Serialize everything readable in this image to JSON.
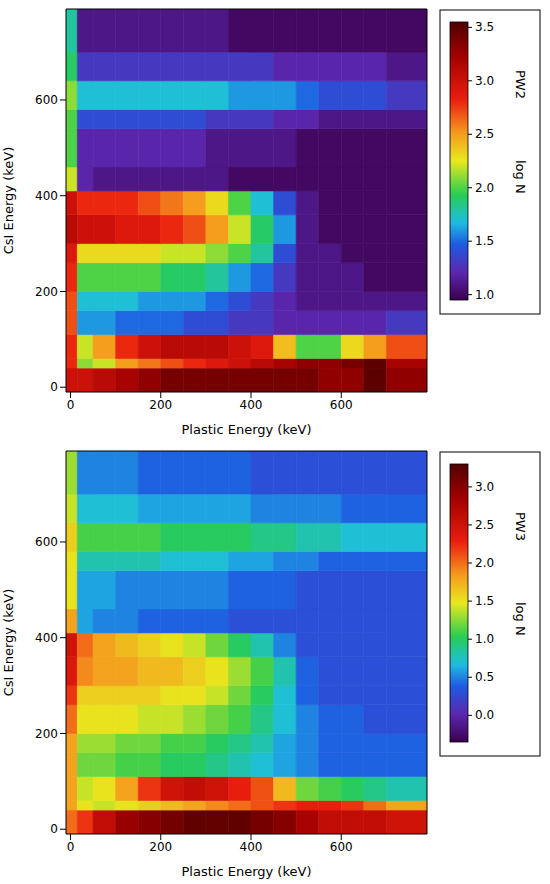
{
  "chart_data": [
    {
      "type": "heatmap",
      "xlabel": "Plastic Energy (keV)",
      "ylabel": "CsI Energy (keV)",
      "xlim": [
        -10,
        790
      ],
      "ylim": [
        -10,
        790
      ],
      "xticks": [
        0,
        200,
        400,
        600
      ],
      "yticks": [
        0,
        200,
        400,
        600
      ],
      "x_edges": [
        -10,
        15,
        50,
        100,
        150,
        200,
        250,
        300,
        350,
        400,
        450,
        500,
        550,
        600,
        650,
        700,
        790
      ],
      "y_edges": [
        -10,
        40,
        60,
        110,
        160,
        200,
        260,
        300,
        360,
        410,
        460,
        540,
        580,
        640,
        700,
        790
      ],
      "cells": [
        [
          3.0,
          3.0,
          3.1,
          3.2,
          3.3,
          3.4,
          3.4,
          3.4,
          3.4,
          3.4,
          3.4,
          3.4,
          3.3,
          3.3,
          3.5,
          3.3
        ],
        [
          2.8,
          2.1,
          2.2,
          2.5,
          2.6,
          2.7,
          2.8,
          2.9,
          3.0,
          3.1,
          3.2,
          3.3,
          3.3,
          3.4,
          3.5,
          3.2
        ],
        [
          2.8,
          2.2,
          2.5,
          2.8,
          3.0,
          3.1,
          3.1,
          3.1,
          3.0,
          2.9,
          2.4,
          2.0,
          2.0,
          2.3,
          2.5,
          2.7
        ],
        [
          2.7,
          1.6,
          1.6,
          1.5,
          1.5,
          1.5,
          1.4,
          1.4,
          1.3,
          1.3,
          1.2,
          1.2,
          1.2,
          1.2,
          1.2,
          1.3
        ],
        [
          2.7,
          1.7,
          1.7,
          1.7,
          1.6,
          1.6,
          1.6,
          1.5,
          1.4,
          1.3,
          1.2,
          1.1,
          1.1,
          1.1,
          1.1,
          1.1
        ],
        [
          2.8,
          2.0,
          2.0,
          2.0,
          2.0,
          1.9,
          1.9,
          1.8,
          1.6,
          1.5,
          1.3,
          1.1,
          1.1,
          1.1,
          1.0,
          1.0
        ],
        [
          2.9,
          2.3,
          2.3,
          2.3,
          2.3,
          2.2,
          2.2,
          2.1,
          2.0,
          1.8,
          1.4,
          1.1,
          1.1,
          1.0,
          1.0,
          1.0
        ],
        [
          3.1,
          3.0,
          3.0,
          2.9,
          2.9,
          2.8,
          2.7,
          2.5,
          2.2,
          1.9,
          1.6,
          1.1,
          1.0,
          1.0,
          1.0,
          1.0
        ],
        [
          3.0,
          2.8,
          2.8,
          2.8,
          2.7,
          2.6,
          2.5,
          2.3,
          2.0,
          1.7,
          1.4,
          1.1,
          1.0,
          1.0,
          1.0,
          1.0
        ],
        [
          2.2,
          1.2,
          1.1,
          1.1,
          1.1,
          1.1,
          1.1,
          1.1,
          1.0,
          1.0,
          1.0,
          1.0,
          1.0,
          1.0,
          1.0,
          1.0
        ],
        [
          2.0,
          1.2,
          1.2,
          1.2,
          1.2,
          1.2,
          1.2,
          1.1,
          1.1,
          1.1,
          1.1,
          1.0,
          1.0,
          1.0,
          1.0,
          1.0
        ],
        [
          2.0,
          1.4,
          1.4,
          1.4,
          1.4,
          1.4,
          1.4,
          1.3,
          1.3,
          1.3,
          1.2,
          1.2,
          1.1,
          1.1,
          1.1,
          1.1
        ],
        [
          2.1,
          1.7,
          1.7,
          1.7,
          1.7,
          1.7,
          1.7,
          1.7,
          1.6,
          1.6,
          1.6,
          1.5,
          1.4,
          1.4,
          1.4,
          1.3
        ],
        [
          1.9,
          1.3,
          1.3,
          1.3,
          1.3,
          1.3,
          1.3,
          1.3,
          1.3,
          1.3,
          1.2,
          1.2,
          1.2,
          1.2,
          1.2,
          1.1
        ],
        [
          1.8,
          1.1,
          1.1,
          1.1,
          1.1,
          1.1,
          1.1,
          1.1,
          1.0,
          1.0,
          1.0,
          1.0,
          1.0,
          1.0,
          1.0,
          1.0
        ]
      ],
      "colorbar_title": "PW2",
      "colorbar_label": "log N",
      "colorbar_range": [
        0.95,
        3.55
      ],
      "colorbar_ticks": [
        {
          "value": 1,
          "label": "1.0"
        },
        1.5,
        {
          "value": 2,
          "label": "2.0"
        },
        2.5,
        {
          "value": 3,
          "label": "3.0"
        },
        3.5
      ]
    },
    {
      "type": "heatmap",
      "xlabel": "Plastic Energy (keV)",
      "ylabel": "CsI Energy (keV)",
      "xlim": [
        -10,
        790
      ],
      "ylim": [
        -10,
        790
      ],
      "xticks": [
        0,
        200,
        400,
        600
      ],
      "yticks": [
        0,
        200,
        400,
        600
      ],
      "x_edges": [
        -10,
        15,
        50,
        100,
        150,
        200,
        250,
        300,
        350,
        400,
        450,
        500,
        550,
        600,
        650,
        700,
        790
      ],
      "y_edges": [
        -10,
        40,
        60,
        110,
        160,
        200,
        260,
        300,
        360,
        410,
        460,
        540,
        580,
        640,
        700,
        790
      ],
      "cells": [
        [
          2.0,
          2.2,
          2.6,
          2.9,
          3.0,
          3.1,
          3.2,
          3.2,
          3.2,
          3.1,
          3.0,
          2.8,
          2.6,
          2.6,
          2.6,
          2.5
        ],
        [
          1.8,
          1.5,
          1.4,
          1.5,
          1.6,
          1.7,
          1.8,
          1.9,
          2.0,
          2.1,
          2.2,
          2.3,
          2.3,
          2.2,
          2.0,
          1.8
        ],
        [
          1.8,
          1.4,
          1.5,
          1.8,
          2.2,
          2.5,
          2.6,
          2.5,
          2.3,
          2.1,
          1.7,
          1.2,
          1.1,
          1.0,
          0.9,
          0.8
        ],
        [
          1.8,
          1.2,
          1.2,
          1.1,
          1.1,
          1.0,
          1.0,
          0.9,
          0.8,
          0.7,
          0.6,
          0.5,
          0.4,
          0.4,
          0.4,
          0.4
        ],
        [
          1.8,
          1.3,
          1.3,
          1.2,
          1.2,
          1.1,
          1.1,
          1.0,
          0.9,
          0.8,
          0.6,
          0.5,
          0.4,
          0.4,
          0.4,
          0.4
        ],
        [
          2.0,
          1.5,
          1.5,
          1.5,
          1.4,
          1.4,
          1.3,
          1.2,
          1.1,
          0.9,
          0.7,
          0.5,
          0.4,
          0.4,
          0.3,
          0.3
        ],
        [
          2.2,
          1.6,
          1.6,
          1.6,
          1.6,
          1.5,
          1.5,
          1.4,
          1.2,
          1.0,
          0.7,
          0.4,
          0.3,
          0.3,
          0.3,
          0.3
        ],
        [
          2.4,
          1.9,
          1.8,
          1.8,
          1.7,
          1.7,
          1.6,
          1.5,
          1.3,
          1.1,
          0.8,
          0.4,
          0.3,
          0.3,
          0.3,
          0.3
        ],
        [
          2.5,
          2.0,
          1.8,
          1.7,
          1.6,
          1.5,
          1.4,
          1.2,
          1.0,
          0.8,
          0.5,
          0.3,
          0.3,
          0.3,
          0.3,
          0.3
        ],
        [
          1.8,
          0.6,
          0.5,
          0.5,
          0.4,
          0.4,
          0.4,
          0.4,
          0.3,
          0.3,
          0.3,
          0.3,
          0.3,
          0.3,
          0.3,
          0.3
        ],
        [
          1.5,
          0.6,
          0.6,
          0.5,
          0.5,
          0.5,
          0.5,
          0.5,
          0.4,
          0.4,
          0.4,
          0.3,
          0.3,
          0.3,
          0.3,
          0.3
        ],
        [
          1.5,
          0.8,
          0.8,
          0.8,
          0.8,
          0.7,
          0.7,
          0.7,
          0.6,
          0.6,
          0.5,
          0.5,
          0.4,
          0.4,
          0.4,
          0.4
        ],
        [
          1.6,
          1.1,
          1.1,
          1.1,
          1.1,
          1.0,
          1.0,
          1.0,
          1.0,
          0.9,
          0.9,
          0.8,
          0.8,
          0.7,
          0.7,
          0.7
        ],
        [
          1.4,
          0.7,
          0.7,
          0.7,
          0.6,
          0.6,
          0.6,
          0.6,
          0.6,
          0.5,
          0.5,
          0.5,
          0.5,
          0.4,
          0.4,
          0.4
        ],
        [
          1.3,
          0.5,
          0.5,
          0.5,
          0.4,
          0.4,
          0.4,
          0.4,
          0.4,
          0.3,
          0.3,
          0.3,
          0.3,
          0.3,
          0.3,
          0.3
        ]
      ],
      "colorbar_title": "PW3",
      "colorbar_label": "log N",
      "colorbar_range": [
        -0.35,
        3.3
      ],
      "colorbar_ticks": [
        {
          "value": 0,
          "label": "0.0"
        },
        0.5,
        {
          "value": 1,
          "label": "1.0"
        },
        1.5,
        {
          "value": 2,
          "label": "2.0"
        },
        2.5,
        {
          "value": 3,
          "label": "3.0"
        }
      ]
    }
  ]
}
